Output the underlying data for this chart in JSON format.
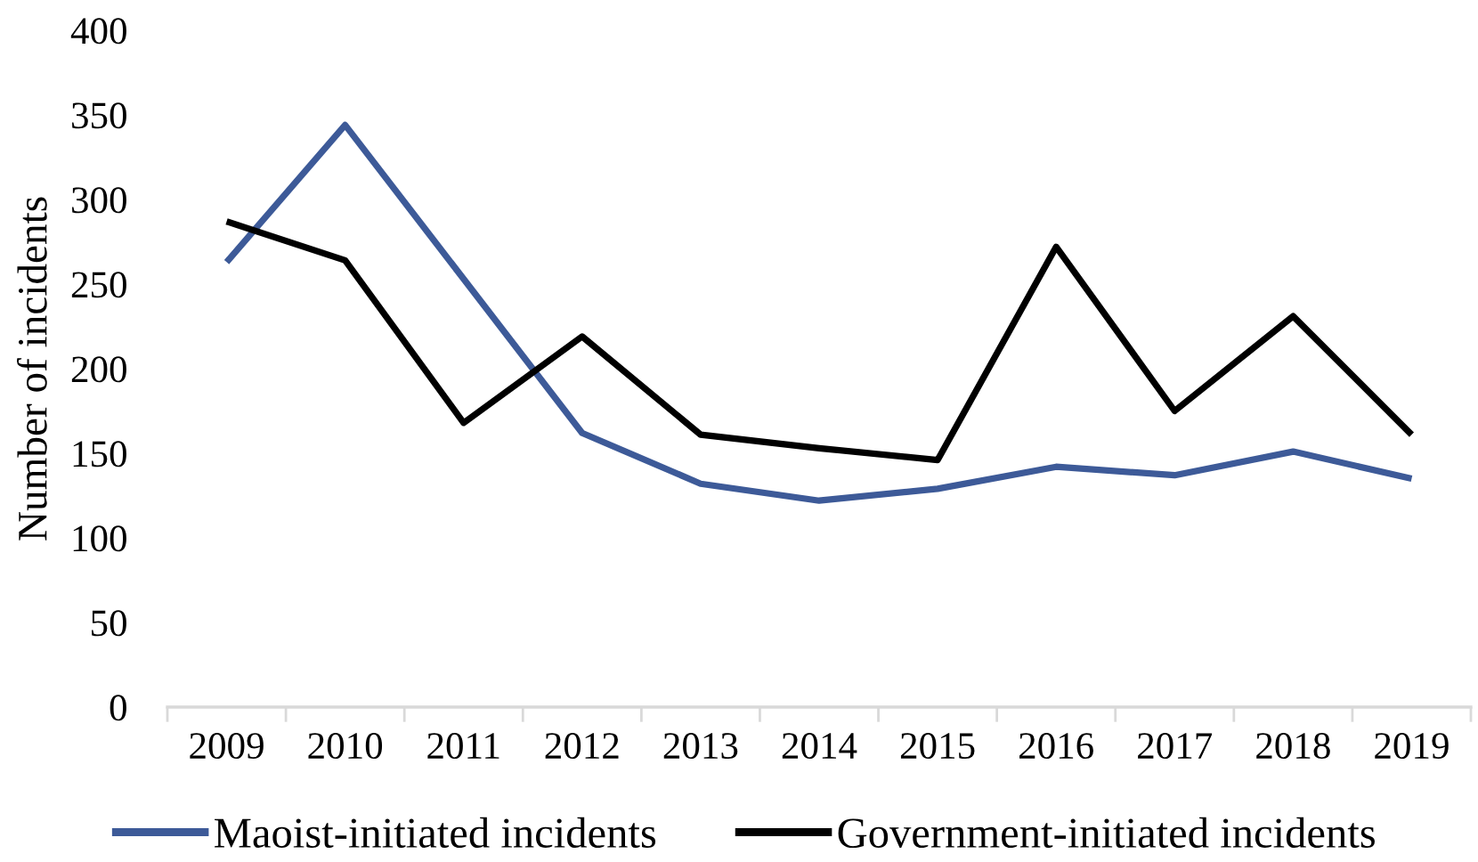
{
  "chart_data": {
    "type": "line",
    "ylabel": "Number of incidents",
    "categories": [
      "2009",
      "2010",
      "2011",
      "2012",
      "2013",
      "2014",
      "2015",
      "2016",
      "2017",
      "2018",
      "2019"
    ],
    "series": [
      {
        "name": "Maoist-initiated incidents",
        "color": "#3d5a98",
        "values": [
          263,
          344,
          253,
          162,
          132,
          122,
          129,
          142,
          137,
          151,
          135
        ]
      },
      {
        "name": "Government-initiated incidents",
        "color": "#000000",
        "values": [
          287,
          264,
          168,
          219,
          161,
          153,
          146,
          272,
          175,
          231,
          161
        ]
      }
    ],
    "ylim": [
      0,
      400
    ],
    "yticks": [
      0,
      50,
      100,
      150,
      200,
      250,
      300,
      350,
      400
    ],
    "legend": "bottom",
    "line_style": "solid"
  }
}
